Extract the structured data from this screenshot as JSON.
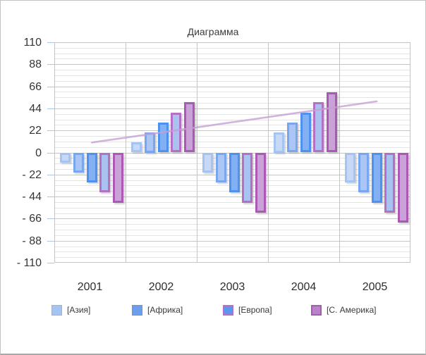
{
  "window": {
    "background": "#ffffff",
    "border_color": "#c2c2c2"
  },
  "chart_data": {
    "type": "bar",
    "title": "Диаграмма",
    "categories": [
      "2001",
      "2002",
      "2003",
      "2004",
      "2005"
    ],
    "series": [
      {
        "name": "[Азия]",
        "color": "#a5c4f1",
        "inner_color": "#c8d9f8",
        "values": [
          -10,
          10,
          -20,
          20,
          -30
        ]
      },
      {
        "name": "[Африка]",
        "color": "#78a7f0",
        "inner_color": "#abc6f5",
        "values": [
          -20,
          20,
          -30,
          30,
          -40
        ]
      },
      {
        "name": "",
        "color": "#4e92f0",
        "inner_color": "#83aff3",
        "values": [
          -30,
          30,
          -40,
          40,
          -50
        ]
      },
      {
        "name": "[Европа]",
        "color": "#b56fc3",
        "inner_color": "#a9c2ef",
        "values": [
          -40,
          40,
          -50,
          50,
          -60
        ]
      },
      {
        "name": "[С. Америка]",
        "color": "#ac59b6",
        "inner_color": "#c9a2d7",
        "values": [
          -50,
          50,
          -60,
          60,
          -70
        ]
      }
    ],
    "trendline": {
      "start_value": 10,
      "end_value": 51,
      "color": "#c49fd5"
    },
    "y_ticks": [
      110,
      88,
      66,
      44,
      22,
      0,
      -22,
      -44,
      -66,
      -88,
      -110
    ],
    "y_tick_labels": [
      "110",
      "88",
      "66",
      "44",
      "22",
      "0",
      "- 22",
      "- 44",
      "- 66",
      "- 88",
      "- 110"
    ],
    "ylim": [
      -110,
      110
    ],
    "minor_grid_step": 5.5,
    "grid": true,
    "legend_position": "bottom"
  },
  "legend": {
    "items": [
      {
        "label": "[Азия]",
        "fill": "#a5c4f1",
        "border": "#93b4e8",
        "border_width": 1
      },
      {
        "label": "[Африка]",
        "fill": "#6d9eec",
        "border": "#6494e4",
        "border_width": 1
      },
      {
        "label": "[Европа]",
        "fill": "#5b97ee",
        "border": "#b56fc3",
        "border_width": 2
      },
      {
        "label": "[С. Америка]",
        "fill": "#b983c9",
        "border": "#a35cae",
        "border_width": 2
      }
    ]
  }
}
